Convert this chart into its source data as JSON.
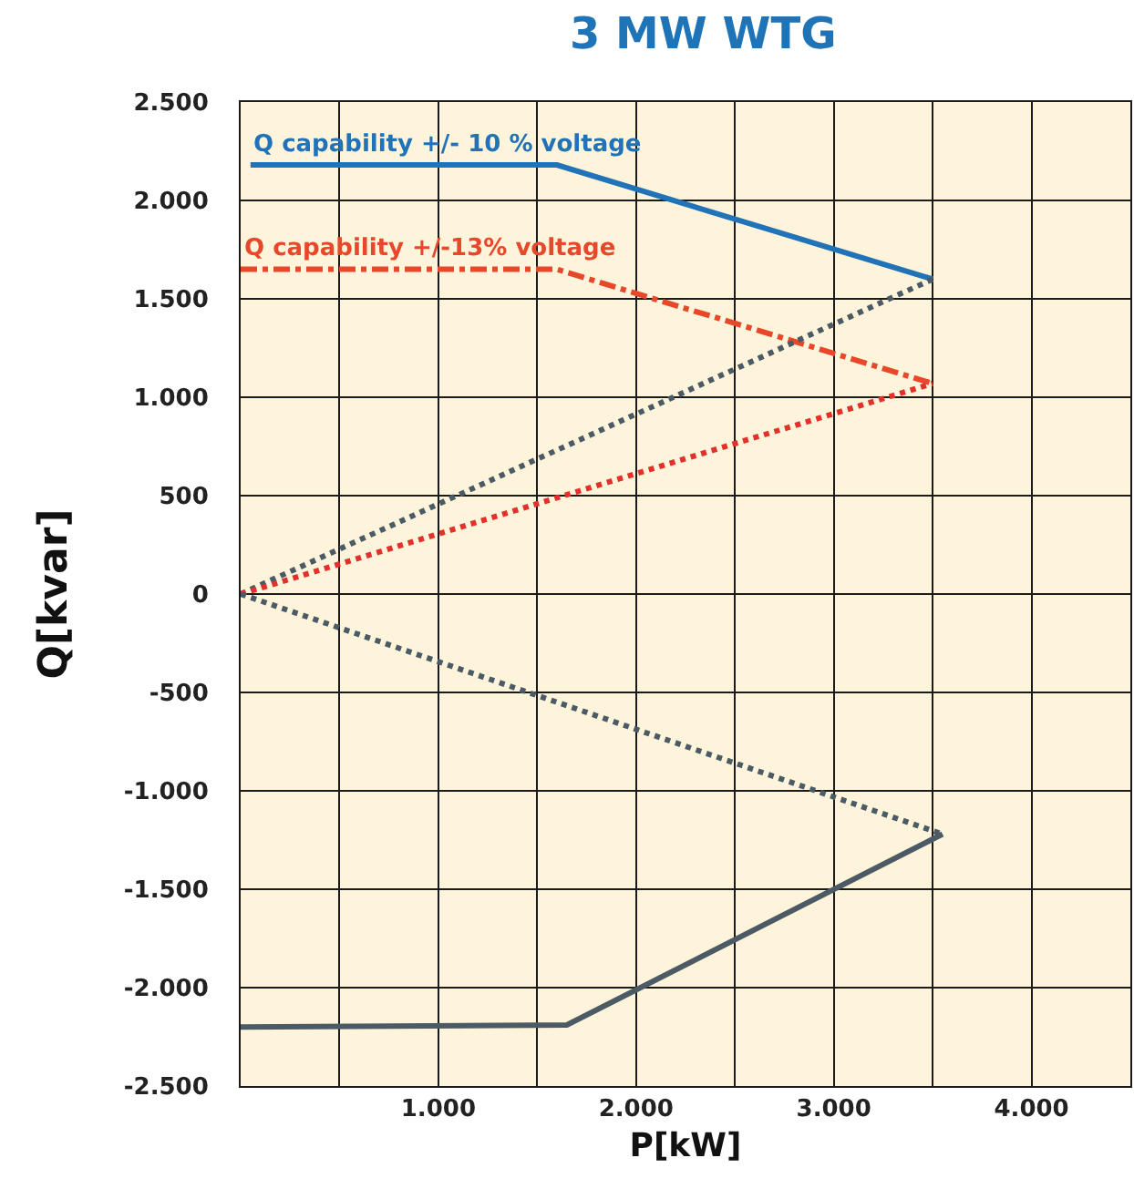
{
  "chart_data": {
    "type": "line",
    "title": "3 MW WTG",
    "xlabel": "P[kW]",
    "ylabel": "Q[kvar]",
    "xlim": [
      0,
      4500
    ],
    "ylim": [
      -2500,
      2500
    ],
    "xticks": [
      {
        "value": 500,
        "label": null
      },
      {
        "value": 1000,
        "label": "1.000"
      },
      {
        "value": 1500,
        "label": null
      },
      {
        "value": 2000,
        "label": "2.000"
      },
      {
        "value": 2500,
        "label": null
      },
      {
        "value": 3000,
        "label": "3.000"
      },
      {
        "value": 3500,
        "label": null
      },
      {
        "value": 4000,
        "label": "4.000"
      }
    ],
    "yticks": [
      {
        "value": -2500,
        "label": "-2.500"
      },
      {
        "value": -2000,
        "label": "-2.000"
      },
      {
        "value": -1500,
        "label": "-1.500"
      },
      {
        "value": -1000,
        "label": "-1.000"
      },
      {
        "value": -500,
        "label": "-500"
      },
      0,
      500,
      {
        "value": 1000,
        "label": "1.000"
      },
      {
        "value": 1500,
        "label": "1.500"
      },
      {
        "value": 2000,
        "label": "2.000"
      },
      {
        "value": 2500,
        "label": "2.500"
      }
    ],
    "grid": true,
    "legend": false,
    "marker": "none",
    "series": [
      {
        "name": "Q capability +/- 10 % voltage",
        "color": "#2272b8",
        "line_style": "solid",
        "x": [
          50,
          1600,
          3500
        ],
        "values": [
          2180,
          2180,
          1600
        ]
      },
      {
        "name": "Q capability +/-13% voltage",
        "color": "#e8482a",
        "line_style": "dashed",
        "x": [
          0,
          1600,
          3500
        ],
        "values": [
          1650,
          1650,
          1070
        ]
      },
      {
        "color": "#4b5a64",
        "line_style": "dotted",
        "x": [
          0,
          3500
        ],
        "values": [
          0,
          1600
        ]
      },
      {
        "color": "#e3302a",
        "line_style": "dotted",
        "x": [
          0,
          3500
        ],
        "values": [
          0,
          1070
        ]
      },
      {
        "color": "#4b5a64",
        "line_style": "dotted",
        "x": [
          0,
          3550
        ],
        "values": [
          0,
          -1220
        ]
      },
      {
        "color": "#4b5a64",
        "line_style": "solid",
        "x": [
          0,
          1650,
          3550
        ],
        "values": [
          -2200,
          -2190,
          -1220
        ]
      }
    ]
  }
}
